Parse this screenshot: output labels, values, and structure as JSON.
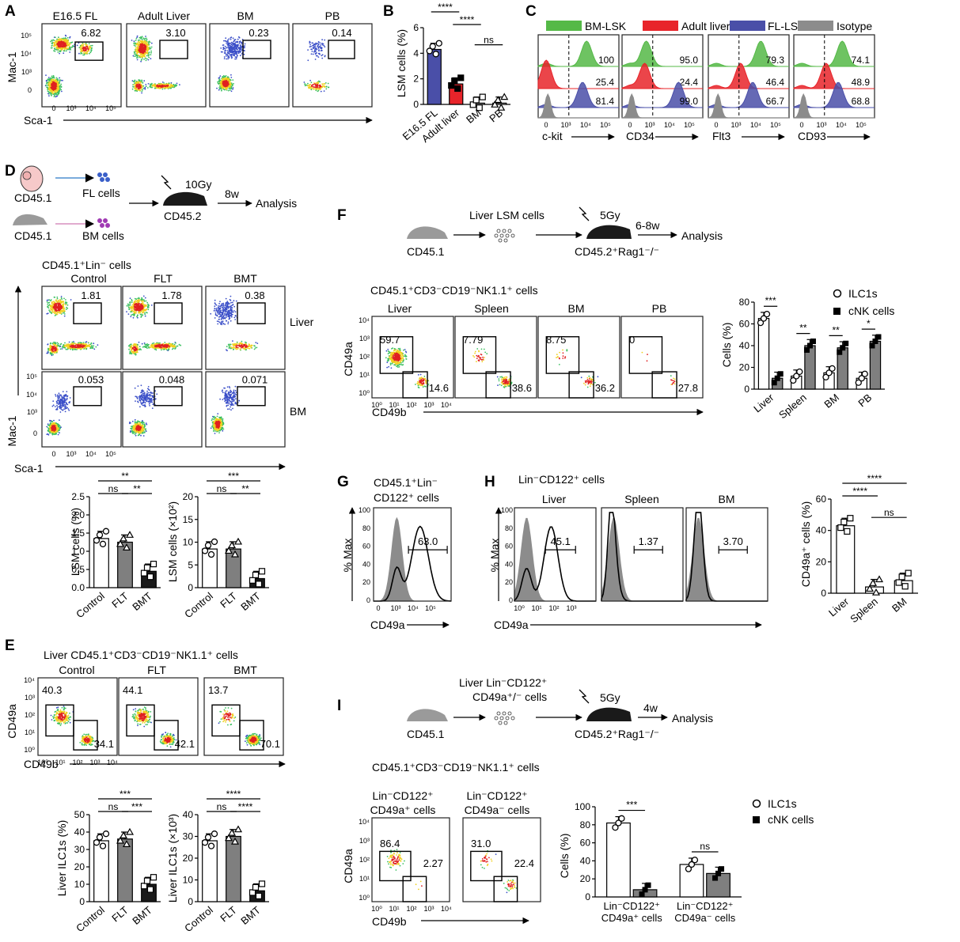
{
  "colors": {
    "ctrl": "#ffffff",
    "flt": "#7f7f7f",
    "bmt": "#1a1a1a",
    "fl": "#4a4fa8",
    "adult": "#e8242a",
    "bmlsk": "#55b947",
    "iso": "#8c8c8c",
    "ilc1": "#ffffff",
    "cnk": "#000000"
  },
  "panelA": {
    "label": "A",
    "samples": [
      "E16.5 FL",
      "Adult Liver",
      "BM",
      "PB"
    ],
    "pcts": [
      "6.82",
      "3.10",
      "0.23",
      "0.14"
    ],
    "ylabel": "Mac-1",
    "xlabel": "Sca-1",
    "yticks": [
      "10⁵",
      "10⁴",
      "10³",
      "0"
    ],
    "xticks": [
      "0",
      "10³",
      "10⁴",
      "10⁵"
    ]
  },
  "panelB": {
    "label": "B",
    "chart_data": {
      "type": "bar",
      "ylabel": "LSM cells (%)",
      "ylim": [
        0,
        6
      ],
      "yticks": [
        "0",
        "2",
        "4",
        "6"
      ],
      "categories": [
        "E16.5 FL",
        "Adult liver",
        "BM",
        "PB"
      ],
      "values": [
        4.3,
        1.6,
        0.1,
        0.1
      ],
      "sig": [
        "****",
        "****",
        "ns"
      ]
    }
  },
  "panelC": {
    "label": "C",
    "legend": [
      "BM-LSK",
      "Adult liver-LSM",
      "FL-LSM",
      "Isotype"
    ],
    "markers": [
      {
        "name": "c-kit",
        "vals": [
          "100",
          "25.4",
          "81.4"
        ]
      },
      {
        "name": "CD34",
        "vals": [
          "95.0",
          "24.4",
          "99.0"
        ]
      },
      {
        "name": "Flt3",
        "vals": [
          "79.3",
          "46.4",
          "66.7"
        ]
      },
      {
        "name": "CD93",
        "vals": [
          "74.1",
          "48.9",
          "68.8"
        ]
      }
    ],
    "ticks": [
      "0",
      "10³",
      "10⁴",
      "10⁵"
    ]
  },
  "panelD": {
    "label": "D",
    "scheme": {
      "donor1": "CD45.1",
      "donor2": "CD45.1",
      "cells1": "FL cells",
      "cells2": "BM cells",
      "dose": "10Gy",
      "recipient": "CD45.2",
      "time": "8w",
      "analysis": "Analysis"
    },
    "gate_title": "CD45.1⁺Lin⁻ cells",
    "cols": [
      "Control",
      "FLT",
      "BMT"
    ],
    "rows": [
      "Liver",
      "BM"
    ],
    "pcts": [
      [
        "1.81",
        "1.78",
        "0.38"
      ],
      [
        "0.053",
        "0.048",
        "0.071"
      ]
    ],
    "ylabel": "Mac-1",
    "xlabel": "Sca-1",
    "yticks": [
      "10⁵",
      "10⁴",
      "10³",
      "0"
    ],
    "xticks": [
      "0",
      "10³",
      "10⁴",
      "10⁵"
    ],
    "bar1": {
      "type": "bar",
      "ylabel": "LSM cells (%)",
      "ylim": [
        0,
        2.5
      ],
      "yticks": [
        "0.0",
        "0.5",
        "1.0",
        "1.5",
        "2.0",
        "2.5"
      ],
      "categories": [
        "Control",
        "FLT",
        "BMT"
      ],
      "values": [
        1.35,
        1.25,
        0.45
      ],
      "sig": [
        "**",
        "ns",
        "**"
      ]
    },
    "bar2": {
      "type": "bar",
      "ylabel": "LSM cells (×10²)",
      "ylim": [
        0,
        20
      ],
      "yticks": [
        "0",
        "5",
        "10",
        "15",
        "20"
      ],
      "categories": [
        "Control",
        "FLT",
        "BMT"
      ],
      "values": [
        8.5,
        8.5,
        2.0
      ],
      "sig": [
        "***",
        "ns",
        "**"
      ]
    }
  },
  "panelE": {
    "label": "E",
    "title": "Liver CD45.1⁺CD3⁻CD19⁻NK1.1⁺ cells",
    "cols": [
      "Control",
      "FLT",
      "BMT"
    ],
    "tl": [
      "40.3",
      "44.1",
      "13.7"
    ],
    "br": [
      "34.1",
      "42.1",
      "70.1"
    ],
    "ylabel": "CD49a",
    "xlabel": "CD49b",
    "yticks": [
      "10⁴",
      "10³",
      "10²",
      "10¹",
      "10⁰"
    ],
    "xticks": [
      "10⁰",
      "10¹",
      "10²",
      "10³",
      "10⁴"
    ],
    "bar1": {
      "type": "bar",
      "ylabel": "Liver ILC1s (%)",
      "ylim": [
        0,
        50
      ],
      "yticks": [
        "0",
        "10",
        "20",
        "30",
        "40",
        "50"
      ],
      "categories": [
        "Control",
        "FLT",
        "BMT"
      ],
      "values": [
        35,
        36,
        10
      ],
      "sig": [
        "***",
        "ns",
        "***"
      ]
    },
    "bar2": {
      "type": "bar",
      "ylabel": "Liver ILC1s (×10³)",
      "ylim": [
        0,
        40
      ],
      "yticks": [
        "0",
        "10",
        "20",
        "30",
        "40"
      ],
      "categories": [
        "Control",
        "FLT",
        "BMT"
      ],
      "values": [
        28,
        30,
        5
      ],
      "sig": [
        "****",
        "ns",
        "****"
      ]
    }
  },
  "panelF": {
    "label": "F",
    "scheme": {
      "donor": "CD45.1",
      "cells": "Liver LSM cells",
      "dose": "5Gy",
      "recipient": "CD45.2⁺Rag1⁻/⁻",
      "time": "6-8w",
      "analysis": "Analysis"
    },
    "title": "CD45.1⁺CD3⁻CD19⁻NK1.1⁺ cells",
    "cols": [
      "Liver",
      "Spleen",
      "BM",
      "PB"
    ],
    "tl": [
      "59.7",
      "7.79",
      "8.75",
      "0"
    ],
    "br": [
      "14.6",
      "38.6",
      "36.2",
      "27.8"
    ],
    "ylabel": "CD49a",
    "xlabel": "CD49b",
    "yticks": [
      "10⁴",
      "10³",
      "10²",
      "10¹",
      "10⁰"
    ],
    "xticks": [
      "10⁰",
      "10¹",
      "10²",
      "10³",
      "10⁴"
    ],
    "legend": [
      "ILC1s",
      "cNK cells"
    ],
    "chart_data": {
      "type": "bar",
      "ylabel": "Cells (%)",
      "ylim": [
        0,
        80
      ],
      "yticks": [
        "0",
        "20",
        "40",
        "60",
        "80"
      ],
      "categories": [
        "Liver",
        "Spleen",
        "BM",
        "PB"
      ],
      "series": [
        {
          "name": "ILC1s",
          "values": [
            65,
            12,
            15,
            10
          ]
        },
        {
          "name": "cNK cells",
          "values": [
            10,
            40,
            38,
            44
          ]
        }
      ],
      "sig": [
        "***",
        "**",
        "**",
        "*"
      ]
    }
  },
  "panelG": {
    "label": "G",
    "title1": "CD45.1⁺Lin⁻",
    "title2": "CD122⁺ cells",
    "pct": "63.0",
    "ylabel": "% Max",
    "xlabel": "CD49a",
    "yticks": [
      "100",
      "80",
      "60",
      "40",
      "20",
      "0"
    ],
    "xticks": [
      "0",
      "10³",
      "10⁴",
      "10⁵"
    ]
  },
  "panelH": {
    "label": "H",
    "title": "Lin⁻CD122⁺ cells",
    "cols": [
      "Liver",
      "Spleen",
      "BM"
    ],
    "pcts": [
      "45.1",
      "1.37",
      "3.70"
    ],
    "ylabel": "% Max",
    "xlabel": "CD49a",
    "yticks": [
      "100",
      "80",
      "60",
      "40",
      "20",
      "0"
    ],
    "xticks": [
      "10⁰",
      "10¹",
      "10²",
      "10³"
    ],
    "chart_data": {
      "type": "bar",
      "ylabel": "CD49a⁺ cells (%)",
      "ylim": [
        0,
        60
      ],
      "yticks": [
        "0",
        "20",
        "40",
        "60"
      ],
      "categories": [
        "Liver",
        "Spleen",
        "BM"
      ],
      "values": [
        43,
        4,
        8
      ],
      "sig": [
        "****",
        "****",
        "ns"
      ]
    }
  },
  "panelI": {
    "label": "I",
    "scheme": {
      "donor": "CD45.1",
      "cells1": "Liver Lin⁻CD122⁺",
      "cells2": "CD49a⁺/⁻ cells",
      "dose": "5Gy",
      "recipient": "CD45.2⁺Rag1⁻/⁻",
      "time": "4w",
      "analysis": "Analysis"
    },
    "title": "CD45.1⁺CD3⁻CD19⁻NK1.1⁺ cells",
    "col1a": "Lin⁻CD122⁺",
    "col1b": "CD49a⁺ cells",
    "col2a": "Lin⁻CD122⁺",
    "col2b": "CD49a⁻ cells",
    "tl": [
      "86.4",
      "31.0"
    ],
    "br": [
      "2.27",
      "22.4"
    ],
    "ylabel": "CD49a",
    "xlabel": "CD49b",
    "yticks": [
      "10⁴",
      "10³",
      "10²",
      "10¹",
      "10⁰"
    ],
    "xticks": [
      "10⁰",
      "10¹",
      "10²",
      "10³",
      "10⁴"
    ],
    "legend": [
      "ILC1s",
      "cNK cells"
    ],
    "chart_data": {
      "type": "bar",
      "ylabel": "Cells (%)",
      "ylim": [
        0,
        100
      ],
      "yticks": [
        "0",
        "20",
        "40",
        "60",
        "80",
        "100"
      ],
      "categories": [
        "Lin⁻CD122⁺ CD49a⁺ cells",
        "Lin⁻CD122⁺ CD49a⁻ cells"
      ],
      "cat_lines": [
        [
          "Lin⁻CD122⁺",
          "CD49a⁺ cells"
        ],
        [
          "Lin⁻CD122⁺",
          "CD49a⁻ cells"
        ]
      ],
      "series": [
        {
          "name": "ILC1s",
          "values": [
            82,
            36
          ]
        },
        {
          "name": "cNK cells",
          "values": [
            8,
            26
          ]
        }
      ],
      "sig": [
        "***",
        "ns"
      ]
    }
  }
}
